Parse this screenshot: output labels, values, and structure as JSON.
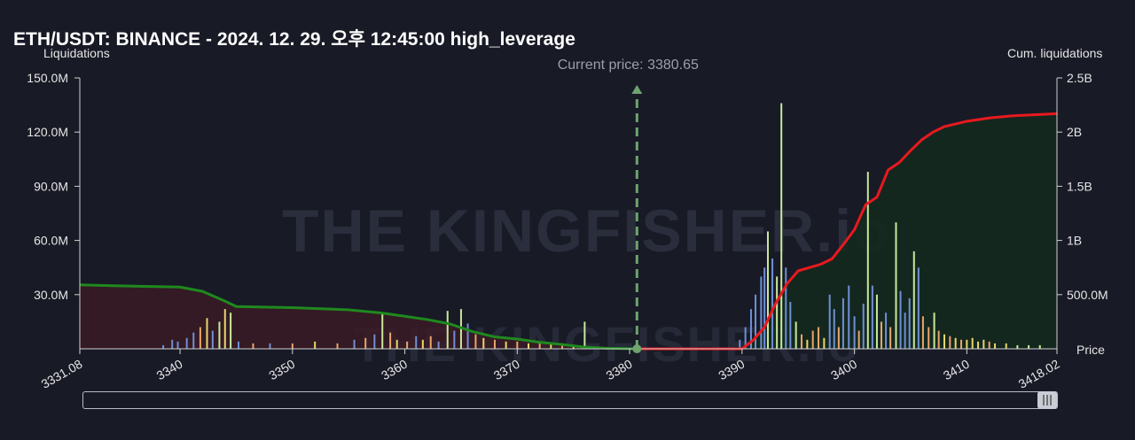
{
  "header": {
    "title": "ETH/USDT: BINANCE - 2024. 12. 29. 오후 12:45:00 high_leverage"
  },
  "annotations": {
    "current_price_label": "Current price: 3380.65",
    "watermark": "THE KINGFISHER.io"
  },
  "colors": {
    "background": "#181a26",
    "short_cum_line": "#e8191e",
    "long_cum_line": "#1e8a1e",
    "short_cum_fill": "#14291e",
    "long_cum_fill": "#3a1b25",
    "current_price_line": "#6fa36f",
    "bar_blue": "#6f8fd6",
    "bar_green": "#c9e89a",
    "bar_orange": "#e8a56b",
    "bar_yellow": "#e8d66b"
  },
  "chart_data": {
    "type": "bar",
    "title": "ETH/USDT: BINANCE - 2024. 12. 29. 오후 12:45:00 high_leverage",
    "xlabel": "Price",
    "ylabel": "Liquidations",
    "y2label": "Cum. liquidations",
    "xlim": [
      3331.08,
      3418.02
    ],
    "ylim": [
      0,
      150000000
    ],
    "y2lim": [
      0,
      2500000000
    ],
    "x_ticks": [
      "3331.08",
      "3340",
      "3350",
      "3360",
      "3370",
      "3380",
      "3390",
      "3400",
      "3410",
      "3418.02"
    ],
    "x_tick_values": [
      3331.08,
      3340,
      3350,
      3360,
      3370,
      3380,
      3390,
      3400,
      3410,
      3418.02
    ],
    "y_ticks": [
      "150.0M",
      "120.0M",
      "90.0M",
      "60.0M",
      "30.0M"
    ],
    "y_tick_values": [
      150000000,
      120000000,
      90000000,
      60000000,
      30000000
    ],
    "y2_ticks": [
      "2.5B",
      "2B",
      "1.5B",
      "1B",
      "500.0M"
    ],
    "y2_tick_values": [
      2500000000,
      2000000000,
      1500000000,
      1000000000,
      500000000
    ],
    "current_price": 3380.65,
    "grid": false,
    "series": [
      {
        "name": "Cum. liquidations (long)",
        "type": "line",
        "x": [
          3331.08,
          3335,
          3340,
          3342,
          3344,
          3345,
          3350,
          3355,
          3358,
          3360,
          3362,
          3364,
          3366,
          3368,
          3370,
          3372,
          3374,
          3376,
          3378,
          3380.65
        ],
        "y": [
          590000000,
          580000000,
          570000000,
          530000000,
          440000000,
          390000000,
          380000000,
          360000000,
          330000000,
          300000000,
          270000000,
          230000000,
          160000000,
          110000000,
          90000000,
          60000000,
          40000000,
          15000000,
          5000000,
          0
        ]
      },
      {
        "name": "Cum. liquidations (short)",
        "type": "line",
        "x": [
          3380.65,
          3385,
          3390,
          3391,
          3392,
          3393,
          3394,
          3395,
          3397,
          3398,
          3399,
          3400,
          3401,
          3402,
          3403,
          3404,
          3405,
          3406,
          3407,
          3408,
          3410,
          3412,
          3414,
          3416,
          3418.02
        ],
        "y": [
          0,
          0,
          0,
          80000000,
          200000000,
          420000000,
          600000000,
          720000000,
          780000000,
          830000000,
          960000000,
          1100000000,
          1330000000,
          1400000000,
          1650000000,
          1720000000,
          1830000000,
          1930000000,
          2000000000,
          2050000000,
          2100000000,
          2130000000,
          2150000000,
          2160000000,
          2170000000
        ]
      },
      {
        "name": "Liquidations",
        "type": "bar",
        "points": [
          [
            3338.5,
            2000000,
            "blue"
          ],
          [
            3339.3,
            5000000,
            "blue"
          ],
          [
            3339.8,
            4000000,
            "blue"
          ],
          [
            3340.6,
            6000000,
            "blue"
          ],
          [
            3341.2,
            9000000,
            "blue"
          ],
          [
            3341.8,
            12000000,
            "orange"
          ],
          [
            3342.4,
            17000000,
            "yellow"
          ],
          [
            3342.9,
            10000000,
            "blue"
          ],
          [
            3343.5,
            15000000,
            "green"
          ],
          [
            3344.0,
            22000000,
            "yellow"
          ],
          [
            3344.5,
            20000000,
            "green"
          ],
          [
            3345.2,
            4000000,
            "blue"
          ],
          [
            3346.5,
            3000000,
            "orange"
          ],
          [
            3348.0,
            3000000,
            "blue"
          ],
          [
            3350.0,
            3000000,
            "orange"
          ],
          [
            3352.0,
            4000000,
            "yellow"
          ],
          [
            3354.0,
            3000000,
            "orange"
          ],
          [
            3355.5,
            5000000,
            "blue"
          ],
          [
            3356.5,
            6000000,
            "orange"
          ],
          [
            3357.3,
            8000000,
            "blue"
          ],
          [
            3358.0,
            20000000,
            "green"
          ],
          [
            3358.7,
            9000000,
            "orange"
          ],
          [
            3359.3,
            5000000,
            "yellow"
          ],
          [
            3360.2,
            4000000,
            "orange"
          ],
          [
            3361.0,
            7000000,
            "blue"
          ],
          [
            3361.6,
            5000000,
            "yellow"
          ],
          [
            3362.3,
            7000000,
            "orange"
          ],
          [
            3363.0,
            4000000,
            "blue"
          ],
          [
            3363.8,
            21000000,
            "green"
          ],
          [
            3364.4,
            10000000,
            "blue"
          ],
          [
            3365.0,
            22000000,
            "green"
          ],
          [
            3365.6,
            14000000,
            "blue"
          ],
          [
            3366.3,
            8000000,
            "orange"
          ],
          [
            3367.0,
            6000000,
            "yellow"
          ],
          [
            3368.0,
            5000000,
            "orange"
          ],
          [
            3369.0,
            4000000,
            "yellow"
          ],
          [
            3370.0,
            4000000,
            "orange"
          ],
          [
            3371.0,
            3000000,
            "yellow"
          ],
          [
            3372.0,
            4000000,
            "orange"
          ],
          [
            3373.0,
            3000000,
            "yellow"
          ],
          [
            3374.0,
            3000000,
            "orange"
          ],
          [
            3375.0,
            2000000,
            "yellow"
          ],
          [
            3376.0,
            15000000,
            "green"
          ],
          [
            3389.8,
            5000000,
            "blue"
          ],
          [
            3390.3,
            12000000,
            "blue"
          ],
          [
            3390.8,
            22000000,
            "blue"
          ],
          [
            3391.2,
            30000000,
            "blue"
          ],
          [
            3391.7,
            40000000,
            "blue"
          ],
          [
            3392.0,
            45000000,
            "blue"
          ],
          [
            3392.3,
            65000000,
            "green"
          ],
          [
            3392.7,
            50000000,
            "blue"
          ],
          [
            3393.1,
            40000000,
            "green"
          ],
          [
            3393.5,
            136000000,
            "green"
          ],
          [
            3393.9,
            45000000,
            "blue"
          ],
          [
            3394.3,
            26000000,
            "blue"
          ],
          [
            3394.8,
            15000000,
            "green"
          ],
          [
            3395.3,
            8000000,
            "orange"
          ],
          [
            3395.8,
            5000000,
            "yellow"
          ],
          [
            3396.3,
            10000000,
            "orange"
          ],
          [
            3396.8,
            12000000,
            "orange"
          ],
          [
            3397.3,
            6000000,
            "yellow"
          ],
          [
            3397.8,
            30000000,
            "blue"
          ],
          [
            3398.2,
            22000000,
            "blue"
          ],
          [
            3398.6,
            12000000,
            "orange"
          ],
          [
            3399.0,
            28000000,
            "blue"
          ],
          [
            3399.5,
            35000000,
            "blue"
          ],
          [
            3400.0,
            18000000,
            "blue"
          ],
          [
            3400.4,
            10000000,
            "orange"
          ],
          [
            3400.8,
            25000000,
            "blue"
          ],
          [
            3401.2,
            98000000,
            "green"
          ],
          [
            3401.6,
            35000000,
            "blue"
          ],
          [
            3402.0,
            30000000,
            "green"
          ],
          [
            3402.4,
            15000000,
            "orange"
          ],
          [
            3402.8,
            20000000,
            "blue"
          ],
          [
            3403.2,
            12000000,
            "orange"
          ],
          [
            3403.7,
            70000000,
            "green"
          ],
          [
            3404.1,
            32000000,
            "blue"
          ],
          [
            3404.5,
            20000000,
            "blue"
          ],
          [
            3404.9,
            28000000,
            "blue"
          ],
          [
            3405.3,
            54000000,
            "green"
          ],
          [
            3405.7,
            45000000,
            "blue"
          ],
          [
            3406.1,
            18000000,
            "orange"
          ],
          [
            3406.6,
            12000000,
            "orange"
          ],
          [
            3407.1,
            20000000,
            "green"
          ],
          [
            3407.5,
            10000000,
            "orange"
          ],
          [
            3408.0,
            8000000,
            "yellow"
          ],
          [
            3408.5,
            7000000,
            "orange"
          ],
          [
            3409.0,
            6000000,
            "yellow"
          ],
          [
            3409.5,
            5000000,
            "orange"
          ],
          [
            3410.0,
            5000000,
            "yellow"
          ],
          [
            3410.5,
            6000000,
            "yellow"
          ],
          [
            3411.0,
            4000000,
            "yellow"
          ],
          [
            3411.5,
            5000000,
            "yellow"
          ],
          [
            3412.0,
            4000000,
            "orange"
          ],
          [
            3412.5,
            3000000,
            "yellow"
          ],
          [
            3413.5,
            3000000,
            "yellow"
          ],
          [
            3414.5,
            2000000,
            "green"
          ],
          [
            3415.5,
            2000000,
            "green"
          ],
          [
            3416.5,
            2000000,
            "green"
          ]
        ]
      }
    ]
  }
}
